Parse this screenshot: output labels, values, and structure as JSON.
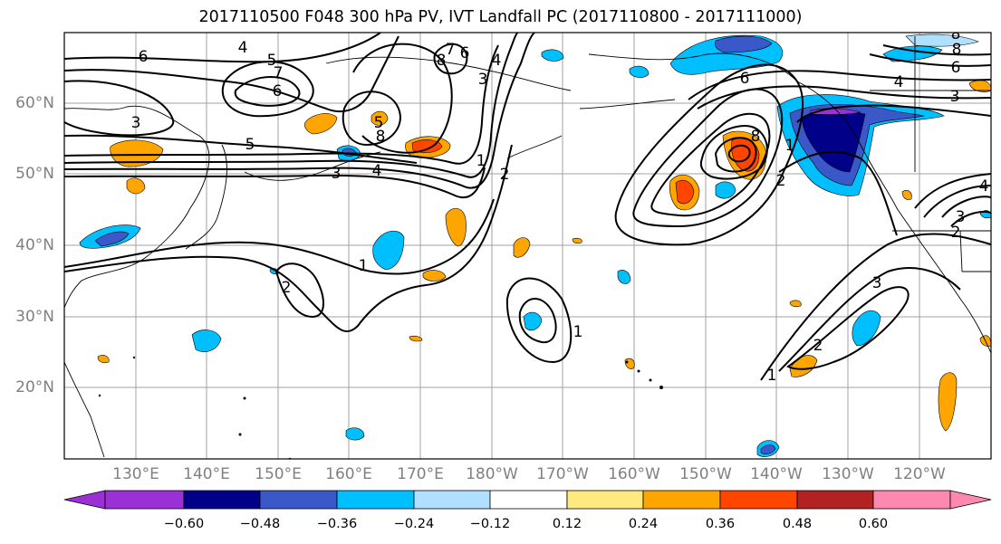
{
  "title": "2017110500 F048 300 hPa PV, IVT Landfall PC (2017110800 - 2017111000)",
  "lat_labels": [
    "60°N",
    "50°N",
    "40°N",
    "30°N",
    "20°N"
  ],
  "lon_labels": [
    "130°E",
    "140°E",
    "150°E",
    "160°E",
    "170°E",
    "180°W",
    "170°W",
    "160°W",
    "150°W",
    "140°W",
    "130°W",
    "120°W"
  ],
  "colorbar": {
    "tick_labels": [
      "−0.60",
      "−0.48",
      "−0.36",
      "−0.24",
      "−0.12",
      "0.12",
      "0.24",
      "0.36",
      "0.48",
      "0.60"
    ],
    "colors": [
      "#9b30d6",
      "#000088",
      "#3a58c8",
      "#00bfff",
      "#b0e0ff",
      "#ffffff",
      "#ffea80",
      "#ffa500",
      "#ff4500",
      "#b22222",
      "#ff88b0"
    ]
  },
  "contour_labels": [
    "6",
    "4",
    "5",
    "7",
    "6",
    "8",
    "7",
    "6",
    "4",
    "3",
    "3",
    "5",
    "4",
    "3",
    "8",
    "1",
    "2",
    "1",
    "2",
    "1",
    "8",
    "6",
    "4",
    "3",
    "8",
    "1",
    "2",
    "4",
    "2",
    "3",
    "2",
    "1",
    "3",
    "6",
    "8",
    "5"
  ]
}
